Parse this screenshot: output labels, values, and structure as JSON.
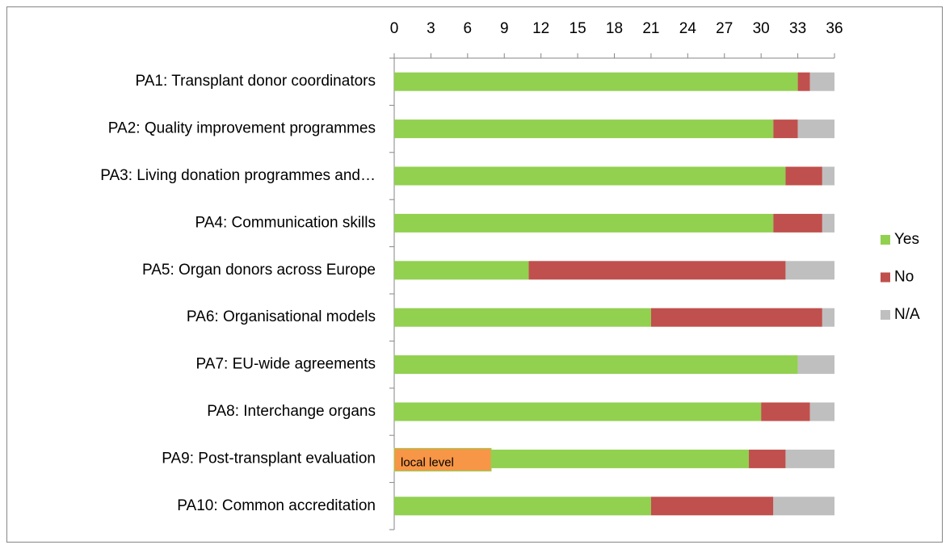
{
  "chart_data": {
    "type": "stacked-bar-horizontal",
    "categories": [
      "PA1: Transplant donor coordinators",
      "PA2: Quality improvement programmes",
      "PA3: Living donation programmes and…",
      "PA4: Communication skills",
      "PA5: Organ donors across Europe",
      "PA6: Organisational models",
      "PA7: EU-wide agreements",
      "PA8: Interchange organs",
      "PA9: Post-transplant evaluation",
      "PA10: Common accreditation"
    ],
    "series": [
      {
        "name": "Yes",
        "color": "#92d050",
        "values": [
          33,
          31,
          32,
          31,
          11,
          21,
          33,
          30,
          29,
          21
        ]
      },
      {
        "name": "No",
        "color": "#c0504d",
        "values": [
          1,
          2,
          3,
          4,
          21,
          14,
          0,
          4,
          3,
          10
        ]
      },
      {
        "name": "N/A",
        "color": "#bfbfbf",
        "values": [
          2,
          3,
          1,
          1,
          4,
          1,
          3,
          2,
          4,
          5
        ]
      }
    ],
    "xlim": [
      0,
      36
    ],
    "xticks": [
      0,
      3,
      6,
      9,
      12,
      15,
      18,
      21,
      24,
      27,
      30,
      33,
      36
    ],
    "legend": "right",
    "annotation": {
      "text": "local level",
      "color": "#f79646"
    }
  }
}
